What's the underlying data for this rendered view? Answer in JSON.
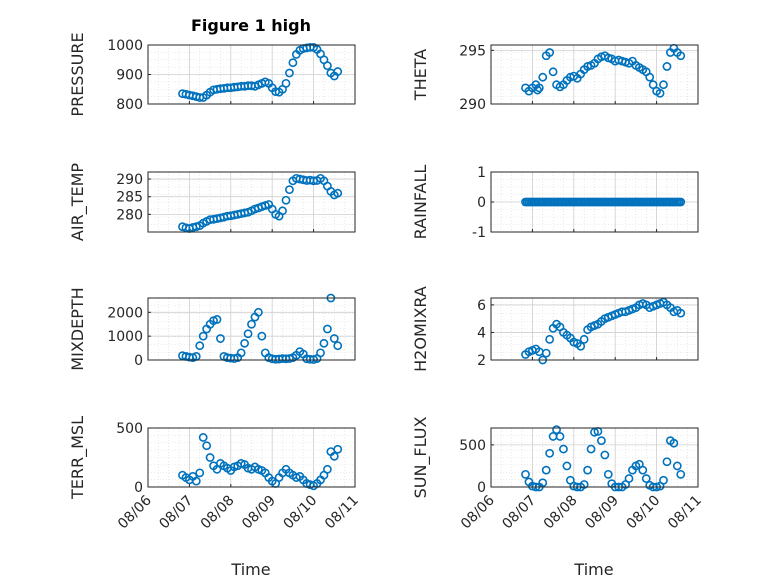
{
  "figure": {
    "title": "Figure 1 high",
    "x_label": "Time",
    "marker_color": "#0072BD"
  },
  "chart_data": [
    {
      "type": "scatter",
      "ylabel": "PRESSURE",
      "ylim": [
        800,
        1000
      ],
      "yticks": [
        "800",
        "900",
        "1000"
      ],
      "xticks": [],
      "x": [
        "08/06 20:00",
        "08/06 22:00",
        "08/07 00:00",
        "08/07 02:00",
        "08/07 04:00",
        "08/07 06:00",
        "08/07 08:00",
        "08/07 10:00",
        "08/07 12:00",
        "08/07 14:00",
        "08/07 16:00",
        "08/07 18:00",
        "08/07 20:00",
        "08/07 22:00",
        "08/08 00:00",
        "08/08 02:00",
        "08/08 04:00",
        "08/08 06:00",
        "08/08 08:00",
        "08/08 10:00",
        "08/08 12:00",
        "08/08 14:00",
        "08/08 16:00",
        "08/08 18:00",
        "08/08 20:00",
        "08/08 22:00",
        "08/09 00:00",
        "08/09 02:00",
        "08/09 04:00",
        "08/09 06:00",
        "08/09 08:00",
        "08/09 10:00",
        "08/09 12:00",
        "08/09 14:00",
        "08/09 16:00",
        "08/09 18:00",
        "08/09 20:00",
        "08/09 22:00",
        "08/10 00:00",
        "08/10 02:00",
        "08/10 04:00",
        "08/10 06:00",
        "08/10 08:00",
        "08/10 10:00",
        "08/10 12:00",
        "08/10 14:00"
      ],
      "y": [
        835,
        833,
        830,
        828,
        825,
        822,
        822,
        830,
        840,
        848,
        850,
        852,
        853,
        855,
        855,
        857,
        858,
        860,
        860,
        862,
        862,
        860,
        865,
        870,
        875,
        870,
        855,
        842,
        840,
        850,
        870,
        905,
        940,
        968,
        982,
        988,
        990,
        992,
        992,
        985,
        970,
        950,
        930,
        905,
        895,
        910
      ]
    },
    {
      "type": "scatter",
      "ylabel": "THETA",
      "ylim": [
        290,
        295.5
      ],
      "yticks": [
        "290",
        "295"
      ],
      "xticks": [],
      "x": [
        "08/06 20:00",
        "08/06 22:00",
        "08/07 00:00",
        "08/07 02:00",
        "08/07 03:00",
        "08/07 04:00",
        "08/07 06:00",
        "08/07 08:00",
        "08/07 10:00",
        "08/07 12:00",
        "08/07 14:00",
        "08/07 16:00",
        "08/07 18:00",
        "08/07 20:00",
        "08/07 22:00",
        "08/08 00:00",
        "08/08 02:00",
        "08/08 04:00",
        "08/08 06:00",
        "08/08 08:00",
        "08/08 10:00",
        "08/08 12:00",
        "08/08 14:00",
        "08/08 16:00",
        "08/08 18:00",
        "08/08 20:00",
        "08/08 22:00",
        "08/09 00:00",
        "08/09 02:00",
        "08/09 04:00",
        "08/09 06:00",
        "08/09 08:00",
        "08/09 10:00",
        "08/09 12:00",
        "08/09 14:00",
        "08/09 16:00",
        "08/09 18:00",
        "08/09 20:00",
        "08/09 22:00",
        "08/10 00:00",
        "08/10 02:00",
        "08/10 04:00",
        "08/10 06:00",
        "08/10 08:00",
        "08/10 10:00",
        "08/10 12:00",
        "08/10 14:00"
      ],
      "y": [
        291.5,
        291.2,
        291.5,
        291.8,
        291.3,
        291.5,
        292.5,
        294.5,
        294.8,
        293.0,
        291.8,
        291.6,
        291.8,
        292.2,
        292.5,
        292.6,
        292.4,
        292.8,
        293.2,
        293.5,
        293.6,
        293.8,
        294.2,
        294.4,
        294.5,
        294.3,
        294.2,
        294.0,
        294.1,
        294.0,
        293.9,
        293.8,
        294.0,
        293.6,
        293.4,
        293.2,
        293.0,
        292.5,
        291.8,
        291.2,
        291.0,
        291.8,
        293.5,
        294.8,
        295.2,
        294.8,
        294.5
      ]
    },
    {
      "type": "scatter",
      "ylabel": "AIR_TEMP",
      "ylim": [
        275,
        292
      ],
      "yticks": [
        "280",
        "285",
        "290"
      ],
      "xticks": [],
      "x": [
        "08/06 20:00",
        "08/06 22:00",
        "08/07 00:00",
        "08/07 02:00",
        "08/07 04:00",
        "08/07 06:00",
        "08/07 08:00",
        "08/07 10:00",
        "08/07 12:00",
        "08/07 14:00",
        "08/07 16:00",
        "08/07 18:00",
        "08/07 20:00",
        "08/07 22:00",
        "08/08 00:00",
        "08/08 02:00",
        "08/08 04:00",
        "08/08 06:00",
        "08/08 08:00",
        "08/08 10:00",
        "08/08 12:00",
        "08/08 14:00",
        "08/08 16:00",
        "08/08 18:00",
        "08/08 20:00",
        "08/08 22:00",
        "08/09 00:00",
        "08/09 02:00",
        "08/09 04:00",
        "08/09 06:00",
        "08/09 08:00",
        "08/09 10:00",
        "08/09 12:00",
        "08/09 14:00",
        "08/09 16:00",
        "08/09 18:00",
        "08/09 20:00",
        "08/09 22:00",
        "08/10 00:00",
        "08/10 02:00",
        "08/10 04:00",
        "08/10 06:00",
        "08/10 08:00",
        "08/10 10:00",
        "08/10 12:00",
        "08/10 14:00"
      ],
      "y": [
        276.5,
        276.2,
        276.0,
        276.3,
        276.5,
        276.8,
        277.5,
        278.0,
        278.5,
        278.6,
        278.8,
        279.0,
        279.2,
        279.5,
        279.6,
        279.8,
        280.0,
        280.2,
        280.4,
        280.6,
        281.0,
        281.5,
        281.8,
        282.2,
        282.5,
        282.8,
        281.5,
        280.0,
        279.5,
        281.0,
        284.0,
        287.0,
        289.5,
        290.2,
        290.0,
        289.8,
        289.6,
        289.7,
        289.5,
        289.6,
        290.2,
        289.5,
        288.0,
        286.5,
        285.5,
        286.0
      ]
    },
    {
      "type": "scatter",
      "ylabel": "RAINFALL",
      "ylim": [
        -1,
        1
      ],
      "yticks": [
        "-1",
        "0",
        "1"
      ],
      "xticks": [],
      "x_range": [
        "08/06 20:00",
        "08/10 14:00"
      ],
      "y": [
        0
      ]
    },
    {
      "type": "scatter",
      "ylabel": "MIXDEPTH",
      "ylim": [
        0,
        2600
      ],
      "yticks": [
        "0",
        "1000",
        "2000"
      ],
      "xticks": [],
      "x": [
        "08/06 20:00",
        "08/06 22:00",
        "08/07 00:00",
        "08/07 02:00",
        "08/07 04:00",
        "08/07 06:00",
        "08/07 08:00",
        "08/07 10:00",
        "08/07 12:00",
        "08/07 14:00",
        "08/07 16:00",
        "08/07 18:00",
        "08/07 20:00",
        "08/07 22:00",
        "08/08 00:00",
        "08/08 02:00",
        "08/08 04:00",
        "08/08 06:00",
        "08/08 08:00",
        "08/08 10:00",
        "08/08 12:00",
        "08/08 14:00",
        "08/08 16:00",
        "08/08 18:00",
        "08/08 20:00",
        "08/08 22:00",
        "08/09 00:00",
        "08/09 02:00",
        "08/09 04:00",
        "08/09 06:00",
        "08/09 08:00",
        "08/09 10:00",
        "08/09 12:00",
        "08/09 14:00",
        "08/09 16:00",
        "08/09 18:00",
        "08/09 20:00",
        "08/09 22:00",
        "08/10 00:00",
        "08/10 02:00",
        "08/10 04:00",
        "08/10 06:00",
        "08/10 08:00",
        "08/10 10:00",
        "08/10 12:00",
        "08/10 14:00"
      ],
      "y": [
        180,
        150,
        120,
        100,
        150,
        600,
        1000,
        1300,
        1500,
        1650,
        1700,
        900,
        150,
        100,
        80,
        60,
        100,
        300,
        700,
        1100,
        1500,
        1800,
        2000,
        1000,
        300,
        100,
        50,
        30,
        40,
        60,
        50,
        60,
        100,
        200,
        350,
        250,
        50,
        30,
        20,
        60,
        300,
        700,
        1300,
        2600,
        900,
        600
      ]
    },
    {
      "type": "scatter",
      "ylabel": "H2OMIXRA",
      "ylim": [
        2,
        6.5
      ],
      "yticks": [
        "2",
        "4",
        "6"
      ],
      "xticks": [],
      "x": [
        "08/06 20:00",
        "08/06 22:00",
        "08/07 00:00",
        "08/07 02:00",
        "08/07 04:00",
        "08/07 06:00",
        "08/07 08:00",
        "08/07 10:00",
        "08/07 12:00",
        "08/07 14:00",
        "08/07 16:00",
        "08/07 18:00",
        "08/07 20:00",
        "08/07 22:00",
        "08/08 00:00",
        "08/08 02:00",
        "08/08 04:00",
        "08/08 06:00",
        "08/08 08:00",
        "08/08 10:00",
        "08/08 12:00",
        "08/08 14:00",
        "08/08 16:00",
        "08/08 18:00",
        "08/08 20:00",
        "08/08 22:00",
        "08/09 00:00",
        "08/09 02:00",
        "08/09 04:00",
        "08/09 06:00",
        "08/09 08:00",
        "08/09 10:00",
        "08/09 12:00",
        "08/09 14:00",
        "08/09 16:00",
        "08/09 18:00",
        "08/09 20:00",
        "08/09 22:00",
        "08/10 00:00",
        "08/10 02:00",
        "08/10 04:00",
        "08/10 06:00",
        "08/10 08:00",
        "08/10 10:00",
        "08/10 12:00",
        "08/10 14:00"
      ],
      "y": [
        2.4,
        2.6,
        2.7,
        2.8,
        2.6,
        2.0,
        2.5,
        3.5,
        4.3,
        4.6,
        4.4,
        4.0,
        3.8,
        3.6,
        3.3,
        3.2,
        3.0,
        3.5,
        4.2,
        4.4,
        4.5,
        4.6,
        4.8,
        5.0,
        5.1,
        5.2,
        5.3,
        5.4,
        5.5,
        5.5,
        5.6,
        5.7,
        5.8,
        6.0,
        6.1,
        6.0,
        5.8,
        5.9,
        6.0,
        6.1,
        6.2,
        6.0,
        5.8,
        5.5,
        5.6,
        5.4
      ]
    },
    {
      "type": "scatter",
      "ylabel": "TERR_MSL",
      "ylim": [
        0,
        500
      ],
      "yticks": [
        "0",
        "500"
      ],
      "xticks": [
        "08/06",
        "08/07",
        "08/08",
        "08/09",
        "08/10",
        "08/11"
      ],
      "x": [
        "08/06 20:00",
        "08/06 22:00",
        "08/07 00:00",
        "08/07 02:00",
        "08/07 04:00",
        "08/07 06:00",
        "08/07 08:00",
        "08/07 10:00",
        "08/07 12:00",
        "08/07 14:00",
        "08/07 16:00",
        "08/07 18:00",
        "08/07 20:00",
        "08/07 22:00",
        "08/08 00:00",
        "08/08 02:00",
        "08/08 04:00",
        "08/08 06:00",
        "08/08 08:00",
        "08/08 10:00",
        "08/08 12:00",
        "08/08 14:00",
        "08/08 16:00",
        "08/08 18:00",
        "08/08 20:00",
        "08/08 22:00",
        "08/09 00:00",
        "08/09 02:00",
        "08/09 04:00",
        "08/09 06:00",
        "08/09 08:00",
        "08/09 10:00",
        "08/09 12:00",
        "08/09 14:00",
        "08/09 16:00",
        "08/09 18:00",
        "08/09 20:00",
        "08/09 22:00",
        "08/10 00:00",
        "08/10 02:00",
        "08/10 04:00",
        "08/10 06:00",
        "08/10 08:00",
        "08/10 10:00",
        "08/10 12:00",
        "08/10 14:00"
      ],
      "y": [
        100,
        80,
        60,
        90,
        50,
        120,
        420,
        350,
        250,
        180,
        150,
        200,
        180,
        160,
        140,
        170,
        180,
        200,
        190,
        160,
        150,
        170,
        150,
        140,
        120,
        80,
        50,
        30,
        80,
        120,
        150,
        120,
        100,
        80,
        90,
        60,
        30,
        20,
        10,
        30,
        60,
        100,
        150,
        300,
        260,
        320
      ]
    },
    {
      "type": "scatter",
      "ylabel": "SUN_FLUX",
      "ylim": [
        0,
        700
      ],
      "yticks": [
        "0",
        "500"
      ],
      "xticks": [
        "08/06",
        "08/07",
        "08/08",
        "08/09",
        "08/10",
        "08/11"
      ],
      "x": [
        "08/06 20:00",
        "08/06 22:00",
        "08/07 00:00",
        "08/07 02:00",
        "08/07 04:00",
        "08/07 06:00",
        "08/07 08:00",
        "08/07 10:00",
        "08/07 12:00",
        "08/07 14:00",
        "08/07 16:00",
        "08/07 18:00",
        "08/07 20:00",
        "08/07 22:00",
        "08/08 00:00",
        "08/08 02:00",
        "08/08 04:00",
        "08/08 06:00",
        "08/08 08:00",
        "08/08 10:00",
        "08/08 12:00",
        "08/08 14:00",
        "08/08 16:00",
        "08/08 18:00",
        "08/08 20:00",
        "08/08 22:00",
        "08/09 00:00",
        "08/09 02:00",
        "08/09 04:00",
        "08/09 06:00",
        "08/09 08:00",
        "08/09 10:00",
        "08/09 12:00",
        "08/09 14:00",
        "08/09 16:00",
        "08/09 18:00",
        "08/09 20:00",
        "08/09 22:00",
        "08/10 00:00",
        "08/10 02:00",
        "08/10 04:00",
        "08/10 06:00",
        "08/10 08:00",
        "08/10 10:00",
        "08/10 12:00",
        "08/10 14:00"
      ],
      "y": [
        150,
        60,
        10,
        0,
        0,
        50,
        200,
        400,
        600,
        680,
        600,
        450,
        250,
        80,
        10,
        0,
        0,
        30,
        200,
        450,
        650,
        660,
        550,
        380,
        150,
        40,
        0,
        0,
        0,
        30,
        100,
        200,
        250,
        270,
        200,
        100,
        20,
        0,
        0,
        10,
        80,
        300,
        550,
        520,
        250,
        150
      ]
    }
  ]
}
